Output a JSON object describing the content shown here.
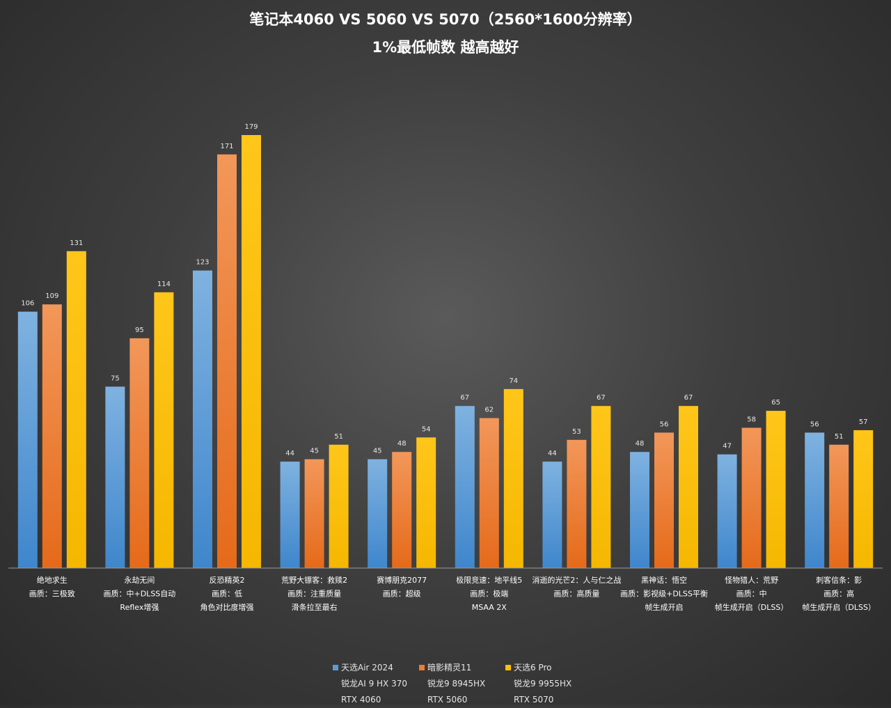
{
  "title": "笔记本4060 VS 5060 VS 5070（2560*1600分辨率）",
  "subtitle": "1%最低帧数 越高越好",
  "colors": {
    "series1": "#5b9bd5",
    "series2": "#ed7d31",
    "series3": "#ffc000"
  },
  "chart_data": {
    "type": "bar",
    "title": "笔记本4060 VS 5060 VS 5070（2560*1600分辨率）",
    "subtitle": "1%最低帧数 越高越好",
    "categories": [
      [
        "绝地求生",
        "画质：三极致"
      ],
      [
        "永劫无间",
        "画质：中+DLSS自动",
        "Reflex增强"
      ],
      [
        "反恐精英2",
        "画质：低",
        "角色对比度增强"
      ],
      [
        "荒野大镖客：救赎2",
        "画质：注重质量",
        "滑条拉至最右"
      ],
      [
        "赛博朋克2077",
        "画质：超级"
      ],
      [
        "极限竞速：地平线5",
        "画质：极端",
        "MSAA 2X"
      ],
      [
        "消逝的光芒2：人与仁之战",
        "画质：高质量"
      ],
      [
        "黑神话：悟空",
        "画质：影视级+DLSS平衡",
        "帧生成开启"
      ],
      [
        "怪物猎人：荒野",
        "画质：中",
        "帧生成开启（DLSS）"
      ],
      [
        "刺客信条：影",
        "画质：高",
        "帧生成开启（DLSS）"
      ]
    ],
    "series": [
      {
        "name": "天选Air 2024",
        "values": [
          106,
          75,
          123,
          44,
          45,
          67,
          44,
          48,
          47,
          56
        ]
      },
      {
        "name": "暗影精灵11",
        "values": [
          109,
          95,
          171,
          45,
          48,
          62,
          53,
          56,
          58,
          51
        ]
      },
      {
        "name": "天选6 Pro",
        "values": [
          131,
          114,
          179,
          51,
          54,
          74,
          67,
          67,
          65,
          57
        ]
      }
    ],
    "ylim": [
      0,
      179
    ],
    "grid": false,
    "legend_position": "bottom"
  },
  "legend": [
    {
      "name": "天选Air 2024",
      "cpu": "锐龙AI 9 HX 370",
      "gpu": "RTX 4060"
    },
    {
      "name": "暗影精灵11",
      "cpu": "锐龙9 8945HX",
      "gpu": "RTX 5060"
    },
    {
      "name": "天选6 Pro",
      "cpu": "锐龙9 9955HX",
      "gpu": "RTX 5070"
    }
  ]
}
